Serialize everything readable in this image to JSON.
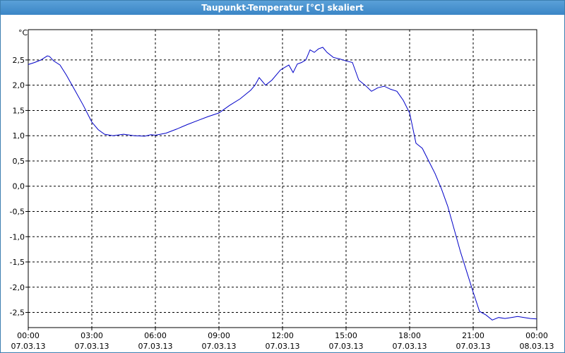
{
  "window": {
    "title": "Taupunkt-Temperatur [°C] skaliert"
  },
  "chart_data": {
    "type": "line",
    "title": "Taupunkt-Temperatur [°C] skaliert",
    "ylabel": "°C",
    "xlabel": "",
    "ylim": [
      -2.8,
      3.1
    ],
    "xlim": [
      0,
      24
    ],
    "y_ticks": [
      2.5,
      2.0,
      1.5,
      1.0,
      0.5,
      0.0,
      -0.5,
      -1.0,
      -1.5,
      -2.0,
      -2.5
    ],
    "y_tick_labels": [
      "2,5",
      "2,0",
      "1,5",
      "1,0",
      "0,5",
      "0,0",
      "-0,5",
      "-1,0",
      "-1,5",
      "-2,0",
      "-2,5"
    ],
    "x_ticks": [
      0,
      3,
      6,
      9,
      12,
      15,
      18,
      21,
      24
    ],
    "x_tick_labels": [
      [
        "00:00",
        "07.03.13"
      ],
      [
        "03:00",
        "07.03.13"
      ],
      [
        "06:00",
        "07.03.13"
      ],
      [
        "09:00",
        "07.03.13"
      ],
      [
        "12:00",
        "07.03.13"
      ],
      [
        "15:00",
        "07.03.13"
      ],
      [
        "18:00",
        "07.03.13"
      ],
      [
        "21:00",
        "07.03.13"
      ],
      [
        "00:00",
        "08.03.13"
      ]
    ],
    "grid": true,
    "series": [
      {
        "color": "#0000c8",
        "x": [
          0,
          0.3,
          0.6,
          0.9,
          1.0,
          1.2,
          1.5,
          1.8,
          2.2,
          2.6,
          3.0,
          3.3,
          3.6,
          4.0,
          4.5,
          5.0,
          5.5,
          5.8,
          6.0,
          6.5,
          7.0,
          7.5,
          8.0,
          8.5,
          9.0,
          9.5,
          10.0,
          10.5,
          10.7,
          10.9,
          11.2,
          11.5,
          11.8,
          11.9,
          12.1,
          12.3,
          12.5,
          12.7,
          12.9,
          13.1,
          13.3,
          13.5,
          13.7,
          13.9,
          14.1,
          14.4,
          14.7,
          15.0,
          15.3,
          15.6,
          15.9,
          16.2,
          16.5,
          16.8,
          17.1,
          17.4,
          17.7,
          18.0,
          18.3,
          18.6,
          18.9,
          19.2,
          19.5,
          19.8,
          20.1,
          20.4,
          20.7,
          21.0,
          21.3,
          21.6,
          21.9,
          22.2,
          22.5,
          22.8,
          23.1,
          23.4,
          23.7,
          24.0
        ],
        "y": [
          2.41,
          2.45,
          2.5,
          2.58,
          2.57,
          2.48,
          2.4,
          2.2,
          1.9,
          1.6,
          1.27,
          1.12,
          1.03,
          1.0,
          1.03,
          1.0,
          0.99,
          1.02,
          1.01,
          1.05,
          1.13,
          1.22,
          1.3,
          1.38,
          1.45,
          1.6,
          1.73,
          1.9,
          2.0,
          2.15,
          2.0,
          2.1,
          2.25,
          2.3,
          2.35,
          2.4,
          2.25,
          2.42,
          2.45,
          2.5,
          2.7,
          2.65,
          2.72,
          2.75,
          2.65,
          2.55,
          2.52,
          2.48,
          2.45,
          2.1,
          2.0,
          1.88,
          1.95,
          1.98,
          1.92,
          1.88,
          1.7,
          1.45,
          0.85,
          0.75,
          0.5,
          0.25,
          -0.05,
          -0.4,
          -0.85,
          -1.3,
          -1.7,
          -2.1,
          -2.48,
          -2.55,
          -2.65,
          -2.6,
          -2.62,
          -2.6,
          -2.58,
          -2.6,
          -2.62,
          -2.63
        ]
      }
    ]
  }
}
